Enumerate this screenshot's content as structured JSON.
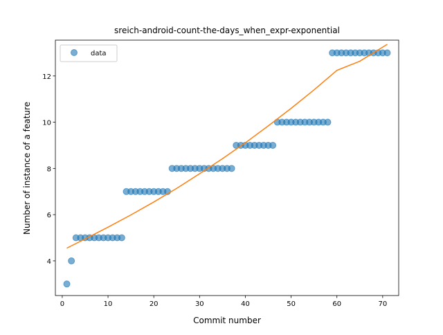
{
  "chart_data": {
    "type": "scatter",
    "title": "sreich-android-count-the-days_when_expr-exponential",
    "xlabel": "Commit number",
    "ylabel": "Number of instance of a feature",
    "xlim": [
      -1.5,
      73.5
    ],
    "ylim": [
      2.5,
      13.55
    ],
    "x_ticks": [
      0,
      10,
      20,
      30,
      40,
      50,
      60,
      70
    ],
    "y_ticks": [
      4,
      6,
      8,
      10,
      12
    ],
    "grid": false,
    "legend": {
      "position": "upper-left",
      "entries": [
        "data"
      ]
    },
    "series": [
      {
        "name": "data",
        "kind": "scatter",
        "color": "#1f77b4",
        "alpha": 0.6,
        "x": [
          1,
          2,
          3,
          4,
          5,
          6,
          7,
          8,
          9,
          10,
          11,
          12,
          13,
          14,
          15,
          16,
          17,
          18,
          19,
          20,
          21,
          22,
          23,
          24,
          25,
          26,
          27,
          28,
          29,
          30,
          31,
          32,
          33,
          34,
          35,
          36,
          37,
          38,
          39,
          40,
          41,
          42,
          43,
          44,
          45,
          46,
          47,
          48,
          49,
          50,
          51,
          52,
          53,
          54,
          55,
          56,
          57,
          58,
          59,
          60,
          61,
          62,
          63,
          64,
          65,
          66,
          67,
          68,
          69,
          70,
          71
        ],
        "y": [
          3,
          4,
          5,
          5,
          5,
          5,
          5,
          5,
          5,
          5,
          5,
          5,
          5,
          7,
          7,
          7,
          7,
          7,
          7,
          7,
          7,
          7,
          7,
          8,
          8,
          8,
          8,
          8,
          8,
          8,
          8,
          8,
          8,
          8,
          8,
          8,
          8,
          9,
          9,
          9,
          9,
          9,
          9,
          9,
          9,
          9,
          10,
          10,
          10,
          10,
          10,
          10,
          10,
          10,
          10,
          10,
          10,
          10,
          13,
          13,
          13,
          13,
          13,
          13,
          13,
          13,
          13,
          13,
          13,
          13,
          13
        ]
      },
      {
        "name": "",
        "kind": "line",
        "color": "#ff7f0e",
        "x": [
          1,
          5,
          10,
          15,
          20,
          25,
          30,
          35,
          40,
          45,
          50,
          55,
          60,
          65,
          71
        ],
        "y": [
          4.55,
          4.95,
          5.46,
          5.99,
          6.55,
          7.14,
          7.77,
          8.42,
          9.11,
          9.84,
          10.6,
          11.4,
          12.24,
          12.64,
          13.37
        ]
      }
    ]
  }
}
